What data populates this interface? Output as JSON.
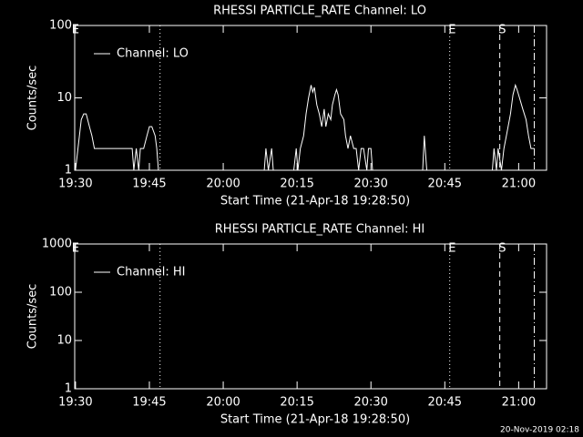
{
  "chart_data": [
    {
      "type": "line",
      "title": "RHESSI PARTICLE_RATE Channel: LO",
      "xlabel": "Start Time (21-Apr-18 19:28:50)",
      "ylabel": "Counts/sec",
      "log_y": true,
      "x": [
        "19:30:00",
        "19:30:30",
        "19:31:10",
        "19:31:40",
        "19:32:10",
        "19:32:50",
        "19:33:20",
        "19:33:50",
        "19:41:30",
        "19:41:50",
        "19:42:20",
        "19:42:50",
        "19:43:10",
        "19:43:50",
        "19:44:30",
        "19:45:00",
        "19:45:30",
        "19:46:10",
        "19:46:30",
        "19:46:50",
        "20:08:20",
        "20:08:40",
        "20:09:10",
        "20:09:50",
        "20:10:10",
        "20:14:20",
        "20:14:50",
        "20:15:10",
        "20:15:40",
        "20:16:20",
        "20:16:50",
        "20:17:20",
        "20:17:50",
        "20:18:10",
        "20:18:30",
        "20:19:00",
        "20:19:30",
        "20:20:00",
        "20:20:30",
        "20:20:50",
        "20:21:20",
        "20:21:50",
        "20:22:10",
        "20:22:40",
        "20:23:00",
        "20:23:20",
        "20:23:50",
        "20:24:30",
        "20:24:50",
        "20:25:20",
        "20:25:50",
        "20:26:30",
        "20:27:00",
        "20:27:30",
        "20:28:00",
        "20:28:30",
        "20:29:10",
        "20:29:30",
        "20:30:00",
        "20:30:20",
        "20:40:30",
        "20:40:50",
        "20:41:20",
        "20:54:40",
        "20:55:00",
        "20:55:30",
        "20:55:50",
        "20:56:30",
        "20:57:00",
        "20:57:30",
        "20:58:20",
        "20:58:50",
        "20:59:20",
        "20:59:40",
        "21:00:10",
        "21:00:50",
        "21:01:30",
        "21:02:00",
        "21:02:30",
        "21:03:10"
      ],
      "series": [
        {
          "name": "Channel: LO",
          "color": "#ffffff",
          "values": [
            1,
            2,
            5,
            6,
            6,
            4,
            3,
            2,
            2,
            1,
            2,
            1,
            2,
            2,
            3,
            4,
            4,
            3,
            2,
            1,
            1,
            2,
            1,
            2,
            1,
            1,
            2,
            1,
            2,
            3,
            6,
            10,
            15,
            12,
            14,
            8,
            6,
            4,
            7,
            4,
            6,
            5,
            8,
            11,
            13,
            11,
            6,
            5,
            3,
            2,
            3,
            2,
            2,
            1,
            2,
            2,
            1,
            2,
            2,
            1,
            1,
            3,
            1,
            1,
            2,
            1,
            2,
            1,
            2,
            3,
            6,
            11,
            15,
            13,
            10,
            7,
            5,
            3,
            2,
            2
          ]
        }
      ],
      "xlim": [
        "19:29:50",
        "21:05:40"
      ],
      "xticks": [
        "19:30",
        "19:45",
        "20:00",
        "20:15",
        "20:30",
        "20:45",
        "21:00"
      ],
      "ylim": [
        1,
        100
      ],
      "yticks": [
        1,
        10,
        100
      ],
      "vlines": [
        {
          "x": "19:47:10",
          "style": "dotted"
        },
        {
          "x": "20:46:00",
          "style": "dotted"
        },
        {
          "x": "20:56:10",
          "style": "dashed"
        },
        {
          "x": "21:03:10",
          "style": "dashdot"
        }
      ],
      "annotations": [
        {
          "x": "19:30:00",
          "text": "E"
        },
        {
          "x": "20:46:30",
          "text": "E"
        },
        {
          "x": "20:56:40",
          "text": "S"
        }
      ]
    },
    {
      "type": "line",
      "title": "RHESSI PARTICLE_RATE Channel: HI",
      "xlabel": "Start Time (21-Apr-18 19:28:50)",
      "ylabel": "Counts/sec",
      "log_y": true,
      "x": [],
      "series": [
        {
          "name": "Channel: HI",
          "color": "#ffffff",
          "values": []
        }
      ],
      "xlim": [
        "19:29:50",
        "21:05:40"
      ],
      "xticks": [
        "19:30",
        "19:45",
        "20:00",
        "20:15",
        "20:30",
        "20:45",
        "21:00"
      ],
      "ylim": [
        1,
        1000
      ],
      "yticks": [
        1,
        10,
        100,
        1000
      ],
      "vlines": [
        {
          "x": "19:47:10",
          "style": "dotted"
        },
        {
          "x": "20:46:00",
          "style": "dotted"
        },
        {
          "x": "20:56:10",
          "style": "dashed"
        },
        {
          "x": "21:03:10",
          "style": "dashdot"
        }
      ],
      "annotations": [
        {
          "x": "19:30:00",
          "text": "E"
        },
        {
          "x": "20:46:30",
          "text": "E"
        },
        {
          "x": "20:56:40",
          "text": "S"
        }
      ]
    }
  ],
  "footer": "20-Nov-2019 02:18"
}
